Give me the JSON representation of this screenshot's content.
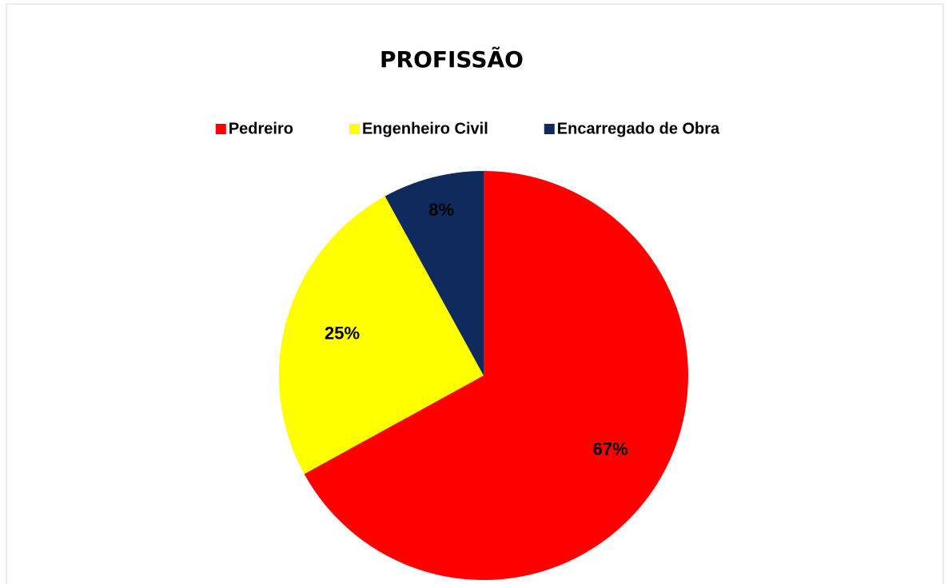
{
  "chart_data": {
    "type": "pie",
    "title": "PROFISSÃO",
    "categories": [
      "Pedreiro",
      "Engenheiro Civil",
      "Encarregado de Obra"
    ],
    "values": [
      67,
      25,
      8
    ],
    "value_labels": [
      "67%",
      "25%",
      "8%"
    ],
    "colors": [
      "#ff0000",
      "#ffff00",
      "#0f2a5c"
    ],
    "legend": "top"
  }
}
